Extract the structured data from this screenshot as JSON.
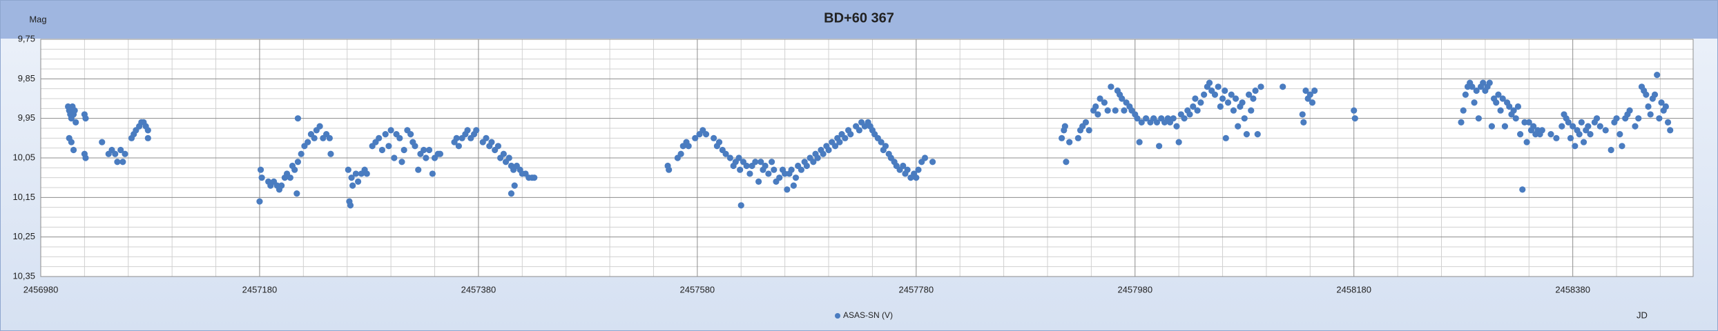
{
  "chart_data": {
    "type": "scatter",
    "title": "BD+60 367",
    "ylabel": "Mag",
    "xlabel": "JD",
    "legend": "bottom",
    "xlim": [
      2456980,
      2458490
    ],
    "ylim": [
      10.35,
      9.75
    ],
    "xticks": [
      2456980,
      2457180,
      2457380,
      2457580,
      2457780,
      2457980,
      2458180,
      2458380
    ],
    "xminorticks": [
      2457020,
      2457060,
      2457100,
      2457140,
      2457220,
      2457260,
      2457300,
      2457340,
      2457420,
      2457460,
      2457500,
      2457540,
      2457620,
      2457660,
      2457700,
      2457740,
      2457820,
      2457860,
      2457900,
      2457940,
      2458020,
      2458060,
      2458100,
      2458140,
      2458220,
      2458260,
      2458300,
      2458340,
      2458420,
      2458460
    ],
    "yticks": [
      {
        "value": 9.75,
        "label": "9,75"
      },
      {
        "value": 9.85,
        "label": "9,85"
      },
      {
        "value": 9.95,
        "label": "9,95"
      },
      {
        "value": 10.05,
        "label": "10,05"
      },
      {
        "value": 10.15,
        "label": "10,15"
      },
      {
        "value": 10.25,
        "label": "10,25"
      },
      {
        "value": 10.35,
        "label": "10,35"
      }
    ],
    "yminorticks": [
      9.775,
      9.8,
      9.825,
      9.875,
      9.9,
      9.925,
      9.975,
      10,
      10.025,
      10.075,
      10.1,
      10.125,
      10.175,
      10.2,
      10.225,
      10.275,
      10.3,
      10.325
    ],
    "series": [
      {
        "name": "ASAS-SN (V)",
        "color": "#4a7cc0",
        "x": [
          2457005,
          2457006,
          2457007,
          2457008,
          2457009,
          2457010,
          2457011,
          2457012,
          2457006,
          2457008,
          2457010,
          2457020,
          2457021,
          2457020,
          2457021,
          2457036,
          2457042,
          2457045,
          2457048,
          2457050,
          2457053,
          2457055,
          2457057,
          2457063,
          2457065,
          2457067,
          2457070,
          2457072,
          2457074,
          2457076,
          2457078,
          2457078,
          2457180,
          2457181,
          2457182,
          2457188,
          2457190,
          2457193,
          2457196,
          2457198,
          2457200,
          2457203,
          2457205,
          2457208,
          2457210,
          2457212,
          2457214,
          2457215,
          2457215,
          2457218,
          2457221,
          2457224,
          2457227,
          2457230,
          2457232,
          2457235,
          2457238,
          2457241,
          2457244,
          2457245,
          2457261,
          2457262,
          2457263,
          2457264,
          2457265,
          2457268,
          2457270,
          2457273,
          2457276,
          2457278,
          2457283,
          2457286,
          2457289,
          2457292,
          2457295,
          2457298,
          2457300,
          2457303,
          2457305,
          2457308,
          2457310,
          2457312,
          2457315,
          2457318,
          2457320,
          2457322,
          2457325,
          2457327,
          2457330,
          2457332,
          2457335,
          2457338,
          2457340,
          2457343,
          2457345,
          2457358,
          2457360,
          2457362,
          2457365,
          2457368,
          2457370,
          2457373,
          2457376,
          2457378,
          2457384,
          2457387,
          2457390,
          2457392,
          2457395,
          2457398,
          2457400,
          2457403,
          2457405,
          2457408,
          2457410,
          2457412,
          2457413,
          2457415,
          2457418,
          2457420,
          2457423,
          2457426,
          2457429,
          2457431,
          2457410,
          2457553,
          2457554,
          2457562,
          2457565,
          2457567,
          2457570,
          2457572,
          2457578,
          2457582,
          2457585,
          2457588,
          2457595,
          2457598,
          2457600,
          2457603,
          2457606,
          2457610,
          2457613,
          2457615,
          2457618,
          2457619,
          2457620,
          2457622,
          2457625,
          2457628,
          2457630,
          2457633,
          2457636,
          2457638,
          2457640,
          2457642,
          2457645,
          2457648,
          2457650,
          2457652,
          2457655,
          2457658,
          2457660,
          2457662,
          2457664,
          2457666,
          2457668,
          2457670,
          2457672,
          2457675,
          2457678,
          2457680,
          2457683,
          2457686,
          2457688,
          2457690,
          2457693,
          2457695,
          2457698,
          2457700,
          2457703,
          2457706,
          2457708,
          2457710,
          2457712,
          2457715,
          2457718,
          2457720,
          2457725,
          2457728,
          2457730,
          2457733,
          2457736,
          2457738,
          2457740,
          2457742,
          2457745,
          2457748,
          2457750,
          2457752,
          2457755,
          2457757,
          2457760,
          2457762,
          2457765,
          2457768,
          2457770,
          2457772,
          2457775,
          2457778,
          2457780,
          2457782,
          2457785,
          2457788,
          2457795,
          2457913,
          2457915,
          2457916,
          2457917,
          2457920,
          2457928,
          2457930,
          2457932,
          2457935,
          2457938,
          2457942,
          2457944,
          2457946,
          2457948,
          2457952,
          2457955,
          2457958,
          2457962,
          2457964,
          2457966,
          2457968,
          2457970,
          2457972,
          2457975,
          2457977,
          2457980,
          2457982,
          2457984,
          2457986,
          2457990,
          2457994,
          2457997,
          2458000,
          2458002,
          2458004,
          2458007,
          2458010,
          2458012,
          2458015,
          2458018,
          2458020,
          2458022,
          2458025,
          2458028,
          2458030,
          2458033,
          2458035,
          2458037,
          2458040,
          2458043,
          2458046,
          2458048,
          2458050,
          2458053,
          2458056,
          2458058,
          2458060,
          2458062,
          2458063,
          2458065,
          2458068,
          2458070,
          2458072,
          2458074,
          2458076,
          2458078,
          2458080,
          2458082,
          2458084,
          2458086,
          2458088,
          2458090,
          2458092,
          2458095,
          2458115,
          2458133,
          2458134,
          2458136,
          2458138,
          2458140,
          2458142,
          2458144,
          2458180,
          2458181,
          2458278,
          2458280,
          2458282,
          2458284,
          2458286,
          2458288,
          2458290,
          2458292,
          2458294,
          2458296,
          2458298,
          2458300,
          2458302,
          2458304,
          2458306,
          2458308,
          2458310,
          2458312,
          2458314,
          2458316,
          2458318,
          2458320,
          2458322,
          2458324,
          2458326,
          2458328,
          2458330,
          2458332,
          2458334,
          2458336,
          2458338,
          2458340,
          2458342,
          2458344,
          2458346,
          2458348,
          2458350,
          2458352,
          2458360,
          2458365,
          2458370,
          2458372,
          2458374,
          2458376,
          2458378,
          2458380,
          2458382,
          2458384,
          2458386,
          2458388,
          2458390,
          2458392,
          2458394,
          2458396,
          2458400,
          2458402,
          2458405,
          2458410,
          2458415,
          2458418,
          2458420,
          2458423,
          2458425,
          2458428,
          2458430,
          2458432,
          2458437,
          2458440,
          2458443,
          2458445,
          2458447,
          2458449,
          2458451,
          2458453,
          2458455,
          2458457,
          2458459,
          2458461,
          2458463,
          2458465,
          2458467,
          2458469
        ],
        "values": [
          9.92,
          9.93,
          9.94,
          9.95,
          9.92,
          9.94,
          9.93,
          9.96,
          10.0,
          10.01,
          10.03,
          10.04,
          10.05,
          9.94,
          9.95,
          10.01,
          10.04,
          10.03,
          10.04,
          10.06,
          10.03,
          10.06,
          10.04,
          10.0,
          9.99,
          9.98,
          9.97,
          9.96,
          9.96,
          9.97,
          9.98,
          10.0,
          10.16,
          10.08,
          10.1,
          10.11,
          10.12,
          10.11,
          10.12,
          10.13,
          10.12,
          10.1,
          10.09,
          10.1,
          10.07,
          10.08,
          10.14,
          10.06,
          9.95,
          10.04,
          10.02,
          10.01,
          9.99,
          10.0,
          9.98,
          9.97,
          10.0,
          9.99,
          10.0,
          10.04,
          10.08,
          10.16,
          10.17,
          10.1,
          10.12,
          10.09,
          10.11,
          10.09,
          10.08,
          10.09,
          10.02,
          10.01,
          10.0,
          10.03,
          9.99,
          10.02,
          9.98,
          10.05,
          9.99,
          10.0,
          10.06,
          10.03,
          9.98,
          9.99,
          10.01,
          10.02,
          10.08,
          10.04,
          10.03,
          10.05,
          10.03,
          10.09,
          10.05,
          10.04,
          10.04,
          10.01,
          10.0,
          10.02,
          10.0,
          9.99,
          9.98,
          10.0,
          9.99,
          9.98,
          10.01,
          10.0,
          10.02,
          10.01,
          10.03,
          10.02,
          10.05,
          10.04,
          10.06,
          10.05,
          10.07,
          10.08,
          10.12,
          10.07,
          10.08,
          10.09,
          10.09,
          10.1,
          10.1,
          10.1,
          10.14,
          10.07,
          10.08,
          10.05,
          10.04,
          10.02,
          10.01,
          10.02,
          10.0,
          9.99,
          9.98,
          9.99,
          10.0,
          10.02,
          10.01,
          10.03,
          10.04,
          10.05,
          10.07,
          10.06,
          10.05,
          10.08,
          10.17,
          10.06,
          10.07,
          10.09,
          10.07,
          10.06,
          10.11,
          10.06,
          10.08,
          10.07,
          10.09,
          10.06,
          10.08,
          10.11,
          10.1,
          10.08,
          10.09,
          10.13,
          10.09,
          10.08,
          10.12,
          10.1,
          10.07,
          10.08,
          10.06,
          10.07,
          10.05,
          10.06,
          10.04,
          10.05,
          10.03,
          10.04,
          10.02,
          10.03,
          10.01,
          10.02,
          10.0,
          10.01,
          9.99,
          10.0,
          9.98,
          9.99,
          9.97,
          9.98,
          9.96,
          9.97,
          9.96,
          9.97,
          9.98,
          9.99,
          10.0,
          10.01,
          10.03,
          10.02,
          10.04,
          10.05,
          10.06,
          10.07,
          10.08,
          10.07,
          10.09,
          10.08,
          10.1,
          10.09,
          10.1,
          10.08,
          10.06,
          10.05,
          10.06,
          10.0,
          9.98,
          9.97,
          10.06,
          10.01,
          10.0,
          9.98,
          9.97,
          9.96,
          9.98,
          9.93,
          9.92,
          9.94,
          9.9,
          9.91,
          9.93,
          9.87,
          9.93,
          9.88,
          9.89,
          9.9,
          9.93,
          9.91,
          9.92,
          9.93,
          9.94,
          9.95,
          10.01,
          9.96,
          9.95,
          9.96,
          9.95,
          9.96,
          10.02,
          9.95,
          9.96,
          9.95,
          9.96,
          9.95,
          9.97,
          10.01,
          9.94,
          9.95,
          9.93,
          9.94,
          9.92,
          9.9,
          9.93,
          9.91,
          9.89,
          9.87,
          9.86,
          9.88,
          9.89,
          9.87,
          9.92,
          9.9,
          9.88,
          10.0,
          9.91,
          9.89,
          9.93,
          9.9,
          9.97,
          9.92,
          9.91,
          9.95,
          9.99,
          9.89,
          9.93,
          9.9,
          9.88,
          9.99,
          9.87,
          9.87,
          9.94,
          9.96,
          9.88,
          9.9,
          9.89,
          9.91,
          9.88,
          9.93,
          9.95,
          9.96,
          9.93,
          9.89,
          9.87,
          9.86,
          9.87,
          9.91,
          9.88,
          9.95,
          9.87,
          9.86,
          9.88,
          9.87,
          9.86,
          9.97,
          9.9,
          9.91,
          9.89,
          9.93,
          9.9,
          9.97,
          9.91,
          9.92,
          9.94,
          9.93,
          9.95,
          9.92,
          9.99,
          10.13,
          9.96,
          10.01,
          9.96,
          9.98,
          9.97,
          9.99,
          9.98,
          9.99,
          9.98,
          9.99,
          10.0,
          9.97,
          9.94,
          9.95,
          9.96,
          10.0,
          9.97,
          10.02,
          9.98,
          9.99,
          9.96,
          10.01,
          9.98,
          9.97,
          9.99,
          9.96,
          9.95,
          9.97,
          9.98,
          10.03,
          9.96,
          9.95,
          9.99,
          10.02,
          9.95,
          9.94,
          9.93,
          9.97,
          9.95,
          9.87,
          9.88,
          9.89,
          9.92,
          9.94,
          9.9,
          9.89,
          9.84,
          9.95,
          9.91,
          9.93,
          9.92,
          9.96,
          9.98
        ]
      }
    ]
  }
}
